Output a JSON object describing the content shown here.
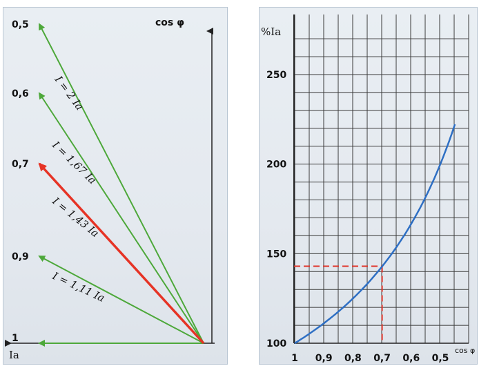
{
  "chart_data": [
    {
      "type": "vector-diagram",
      "axis_y_label": "cos φ",
      "axis_x_label": "Ia",
      "colors": {
        "green": "#4da83a",
        "red": "#e63325",
        "axis": "#222222"
      },
      "tick_labels": [
        "0,5",
        "0,6",
        "0,7",
        "0,9",
        "1"
      ],
      "vectors": [
        {
          "cos_phi": 0.5,
          "label": "I = 2 Ia",
          "color": "green"
        },
        {
          "cos_phi": 0.6,
          "label": "I = 1,67 Ia",
          "color": "green"
        },
        {
          "cos_phi": 0.7,
          "label": "I = 1,43 Ia",
          "color": "red"
        },
        {
          "cos_phi": 0.9,
          "label": "I = 1,11 Ia",
          "color": "green"
        },
        {
          "cos_phi": 1.0,
          "label": "",
          "color": "green"
        }
      ]
    },
    {
      "type": "line",
      "ylabel": "%Ia",
      "xlabel": "cos φ",
      "x_tick_labels": [
        "1",
        "0,9",
        "0,8",
        "0,7",
        "0,6",
        "0,5"
      ],
      "y_tick_labels": [
        "100",
        "150",
        "200",
        "250"
      ],
      "ylim": [
        100,
        250
      ],
      "xlim": [
        1.0,
        0.5
      ],
      "grid": true,
      "series": [
        {
          "x": [
            1.0,
            0.95,
            0.9,
            0.85,
            0.8,
            0.75,
            0.7,
            0.65,
            0.6,
            0.55,
            0.5
          ],
          "y": [
            100,
            105,
            111,
            118,
            125,
            133,
            143,
            154,
            167,
            182,
            200
          ],
          "color": "#2e6fc4"
        }
      ],
      "highlight": {
        "x": 0.7,
        "y": 143,
        "color": "#e0352a"
      }
    }
  ]
}
